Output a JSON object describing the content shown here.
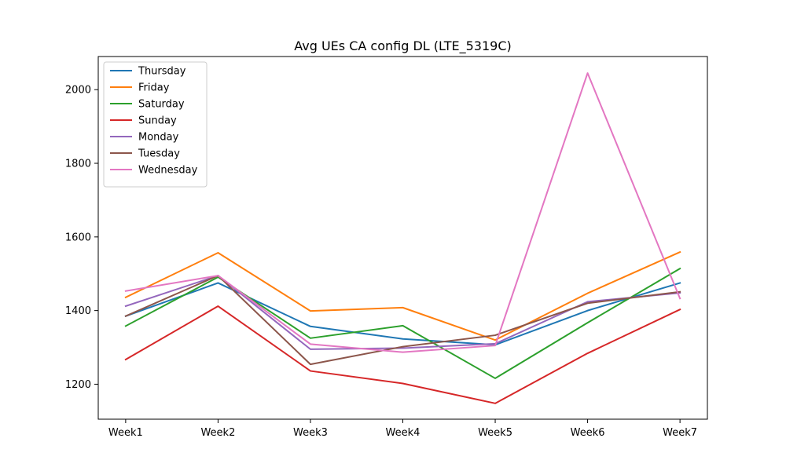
{
  "chart_data": {
    "type": "line",
    "title": "Avg UEs CA config DL (LTE_5319C)",
    "xlabel": "",
    "ylabel": "",
    "categories": [
      "Week1",
      "Week2",
      "Week3",
      "Week4",
      "Week5",
      "Week6",
      "Week7"
    ],
    "ylim": [
      1105,
      2090
    ],
    "yticks": [
      1200,
      1400,
      1600,
      1800,
      2000
    ],
    "grid": false,
    "legend_position": "top-left",
    "series": [
      {
        "name": "Thursday",
        "color": "#1f77b4",
        "values": [
          1385,
          1475,
          1357,
          1323,
          1307,
          1400,
          1475
        ]
      },
      {
        "name": "Friday",
        "color": "#ff7f0e",
        "values": [
          1436,
          1557,
          1399,
          1408,
          1320,
          1447,
          1559
        ]
      },
      {
        "name": "Saturday",
        "color": "#2ca02c",
        "values": [
          1358,
          1491,
          1325,
          1359,
          1216,
          1367,
          1514
        ]
      },
      {
        "name": "Sunday",
        "color": "#d62728",
        "values": [
          1267,
          1412,
          1236,
          1202,
          1148,
          1284,
          1403
        ]
      },
      {
        "name": "Monday",
        "color": "#9467bd",
        "values": [
          1412,
          1495,
          1295,
          1298,
          1310,
          1424,
          1448
        ]
      },
      {
        "name": "Tuesday",
        "color": "#8c564b",
        "values": [
          1385,
          1495,
          1254,
          1302,
          1333,
          1420,
          1451
        ]
      },
      {
        "name": "Wednesday",
        "color": "#e377c2",
        "values": [
          1453,
          1495,
          1309,
          1287,
          1305,
          2045,
          1433
        ]
      }
    ]
  }
}
